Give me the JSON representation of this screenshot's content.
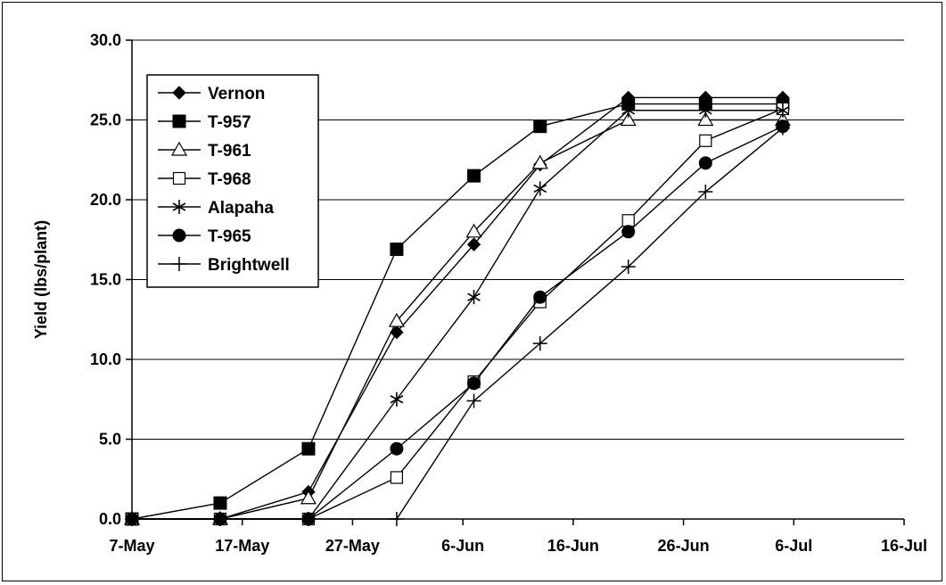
{
  "chart_data": {
    "type": "line",
    "title": "",
    "xlabel": "",
    "ylabel": "Yield (lbs/plant)",
    "ylim": [
      0,
      30
    ],
    "yticks": [
      "0.0",
      "5.0",
      "10.0",
      "15.0",
      "20.0",
      "25.0",
      "30.0"
    ],
    "xlim": [
      "7-May",
      "16-Jul"
    ],
    "xticks": [
      "7-May",
      "17-May",
      "27-May",
      "6-Jun",
      "16-Jun",
      "26-Jun",
      "6-Jul",
      "16-Jul"
    ],
    "grid": "horizontal",
    "legend_position": "top-left",
    "x": [
      "7-May",
      "15-May",
      "23-May",
      "31-May",
      "7-Jun",
      "13-Jun",
      "21-Jun",
      "28-Jun",
      "5-Jul"
    ],
    "series": [
      {
        "name": "Vernon",
        "marker": "diamond-filled",
        "values": [
          0.0,
          0.0,
          1.7,
          11.7,
          17.2,
          22.2,
          26.4,
          26.4,
          26.4
        ]
      },
      {
        "name": "T-957",
        "marker": "square-filled",
        "values": [
          0.0,
          1.0,
          4.4,
          16.9,
          21.5,
          24.6,
          26.0,
          26.0,
          26.0
        ]
      },
      {
        "name": "T-961",
        "marker": "triangle-open",
        "values": [
          0.0,
          0.0,
          1.3,
          12.4,
          18.0,
          22.3,
          25.0,
          25.0,
          25.0
        ]
      },
      {
        "name": "T-968",
        "marker": "square-open",
        "values": [
          0.0,
          0.0,
          0.0,
          2.6,
          8.6,
          13.6,
          18.7,
          23.7,
          25.7
        ]
      },
      {
        "name": "Alapaha",
        "marker": "star",
        "values": [
          0.0,
          0.0,
          0.0,
          7.5,
          13.9,
          20.7,
          25.6,
          25.6,
          25.6
        ]
      },
      {
        "name": "T-965",
        "marker": "circle-filled",
        "values": [
          0.0,
          0.0,
          0.0,
          4.4,
          8.5,
          13.9,
          18.0,
          22.3,
          24.6
        ]
      },
      {
        "name": "Brightwell",
        "marker": "plus",
        "values": [
          0.0,
          0.0,
          0.0,
          0.0,
          7.4,
          11.0,
          15.8,
          20.5,
          24.5
        ]
      }
    ]
  }
}
